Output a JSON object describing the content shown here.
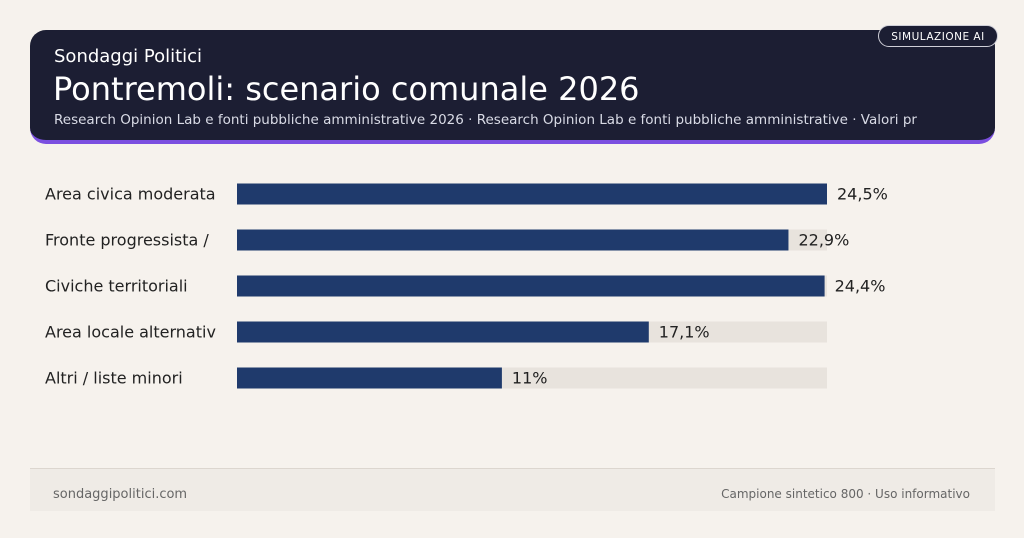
{
  "badge": "SIMULAZIONE AI",
  "header": {
    "kicker": "Sondaggi Politici",
    "title": "Pontremoli: scenario comunale 2026",
    "subtitle": "Research Opinion Lab e fonti pubbliche amministrative 2026 · Research Opinion Lab e fonti pubbliche amministrative · Valori pr"
  },
  "chart_data": {
    "type": "bar",
    "orientation": "horizontal",
    "categories": [
      "Area civica moderata",
      "Fronte progressista /",
      "Civiche territoriali",
      "Area locale alternativ",
      "Altri / liste minori"
    ],
    "values": [
      24.5,
      22.9,
      24.4,
      17.1,
      11
    ],
    "value_labels": [
      "24,5%",
      "22,9%",
      "24,4%",
      "17,1%",
      "11%"
    ],
    "color": "#1f3a6c",
    "track_color": "#e8e3dd"
  },
  "footer": {
    "left": "sondaggipolitici.com",
    "right": "Campione sintetico 800 · Uso informativo"
  }
}
